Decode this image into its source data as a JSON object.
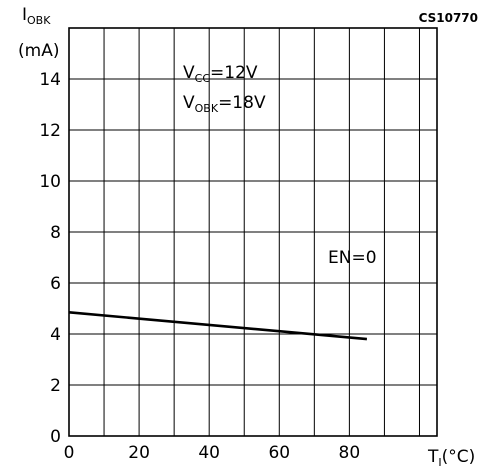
{
  "chart_data": {
    "type": "line",
    "figure_code": "CS10770",
    "ylabel": {
      "main": "I",
      "sub": "OBK",
      "unit": "(mA)"
    },
    "xlabel": {
      "main": "T",
      "sub": "J",
      "unit": "(°C)"
    },
    "xlim": [
      0,
      105
    ],
    "ylim": [
      0,
      16
    ],
    "x_ticks": [
      0,
      20,
      40,
      60,
      80
    ],
    "y_ticks": [
      0,
      2,
      4,
      6,
      8,
      10,
      12,
      14
    ],
    "grid": true,
    "annotations": {
      "vcc": {
        "main": "V",
        "sub": "CC",
        "value": "=12V"
      },
      "vobk": {
        "main": "V",
        "sub": "OBK",
        "value": "=18V"
      },
      "en": "EN=0"
    },
    "series": [
      {
        "x": [
          0,
          85
        ],
        "y": [
          4.85,
          3.8
        ]
      }
    ],
    "colors": {
      "line": "#000000",
      "grid": "#000000"
    }
  }
}
